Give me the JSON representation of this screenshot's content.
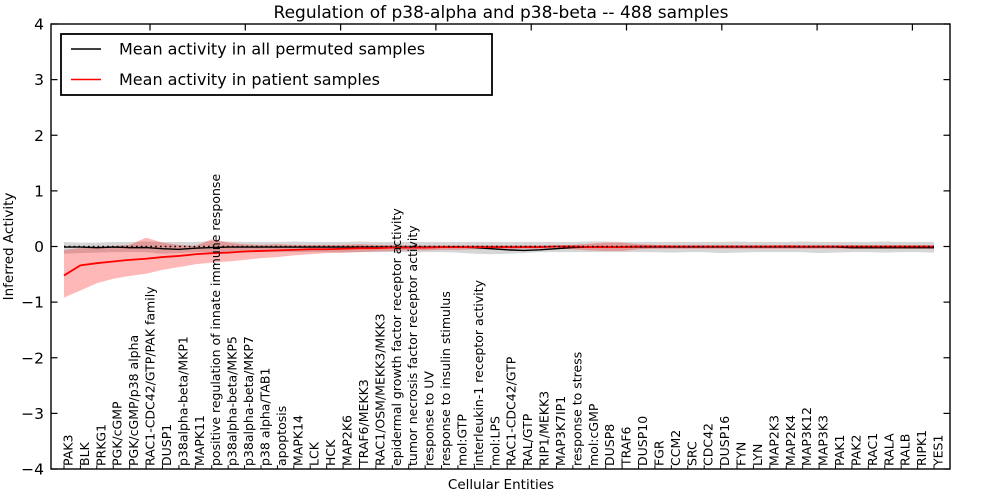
{
  "title": "Regulation of p38-alpha and p38-beta -- 488 samples",
  "chart_data": {
    "type": "line",
    "title": "Regulation of p38-alpha and p38-beta -- 488 samples",
    "xlabel": "Cellular Entities",
    "ylabel": "Inferred Activity",
    "ylim": [
      -4,
      4
    ],
    "yticks": [
      4,
      3,
      2,
      1,
      0,
      -1,
      -2,
      -3,
      -4
    ],
    "grid": false,
    "legend_position": "upper left",
    "zero_line_style": "dotted",
    "colors": {
      "permuted_line": "#000000",
      "permuted_band": "rgba(0,0,0,0.16)",
      "patient_line": "#ff0000",
      "patient_band": "rgba(255,0,0,0.28)"
    },
    "categories": [
      "PAK3",
      "BLK",
      "PRKG1",
      "PGK/cGMP",
      "PGK/cGMP/p38 alpha",
      "RAC1-CDC42/GTP/PAK family",
      "DUSP1",
      "p38alpha-beta/MKP1",
      "MAPK11",
      "positive regulation of innate immune response",
      "p38alpha-beta/MKP5",
      "p38alpha-beta/MKP7",
      "p38 alpha/TAB1",
      "apoptosis",
      "MAPK14",
      "LCK",
      "HCK",
      "MAP2K6",
      "TRAF6/MEKK3",
      "RAC1/OSM/MEKK3/MKK3",
      "epidermal growth factor receptor activity",
      "tumor necrosis factor receptor activity",
      "response to UV",
      "response to insulin stimulus",
      "mol:GTP",
      "interleukin-1 receptor activity",
      "mol:LPS",
      "RAC1-CDC42/GTP",
      "RAL/GTP",
      "RIP1/MEKK3",
      "MAP3K7IP1",
      "response to stress",
      "mol:cGMP",
      "DUSP8",
      "TRAF6",
      "DUSP10",
      "FGR",
      "CCM2",
      "SRC",
      "CDC42",
      "DUSP16",
      "FYN",
      "LYN",
      "MAP2K3",
      "MAP2K4",
      "MAP3K12",
      "MAP3K3",
      "PAK1",
      "PAK2",
      "RAC1",
      "RALA",
      "RALB",
      "RIPK1",
      "YES1"
    ],
    "series": [
      {
        "name": "Mean activity in all permuted samples",
        "type": "line",
        "color": "#000000",
        "values": [
          -0.01,
          -0.01,
          -0.02,
          -0.01,
          -0.02,
          -0.02,
          -0.04,
          -0.05,
          -0.03,
          -0.02,
          -0.01,
          -0.01,
          -0.01,
          -0.01,
          -0.01,
          -0.01,
          -0.01,
          -0.01,
          -0.01,
          -0.01,
          -0.01,
          -0.01,
          -0.01,
          -0.01,
          -0.01,
          -0.02,
          -0.04,
          -0.06,
          -0.07,
          -0.06,
          -0.04,
          -0.02,
          -0.01,
          -0.01,
          -0.01,
          -0.01,
          -0.01,
          -0.01,
          -0.01,
          -0.01,
          -0.01,
          -0.01,
          -0.01,
          -0.01,
          -0.01,
          -0.01,
          -0.01,
          -0.01,
          -0.02,
          -0.02,
          -0.02,
          -0.02,
          -0.02,
          -0.02
        ]
      },
      {
        "name": "Permuted samples confidence band",
        "type": "band",
        "color": "rgba(0,0,0,0.16)",
        "upper": [
          0.08,
          0.07,
          0.07,
          0.08,
          0.08,
          0.09,
          0.08,
          0.08,
          0.08,
          0.1,
          0.09,
          0.08,
          0.08,
          0.08,
          0.09,
          0.08,
          0.08,
          0.08,
          0.09,
          0.08,
          0.08,
          0.08,
          0.08,
          0.08,
          0.08,
          0.08,
          0.08,
          0.08,
          0.08,
          0.08,
          0.08,
          0.08,
          0.09,
          0.09,
          0.08,
          0.08,
          0.08,
          0.08,
          0.08,
          0.08,
          0.08,
          0.09,
          0.08,
          0.08,
          0.08,
          0.09,
          0.08,
          0.08,
          0.08,
          0.08,
          0.09,
          0.08,
          0.08,
          0.08
        ],
        "lower": [
          -0.13,
          -0.12,
          -0.11,
          -0.1,
          -0.1,
          -0.1,
          -0.13,
          -0.12,
          -0.1,
          -0.1,
          -0.1,
          -0.1,
          -0.1,
          -0.1,
          -0.1,
          -0.1,
          -0.1,
          -0.11,
          -0.1,
          -0.1,
          -0.1,
          -0.1,
          -0.1,
          -0.1,
          -0.11,
          -0.13,
          -0.14,
          -0.13,
          -0.12,
          -0.1,
          -0.1,
          -0.1,
          -0.1,
          -0.1,
          -0.1,
          -0.1,
          -0.1,
          -0.11,
          -0.1,
          -0.1,
          -0.12,
          -0.11,
          -0.1,
          -0.1,
          -0.1,
          -0.1,
          -0.12,
          -0.11,
          -0.1,
          -0.1,
          -0.11,
          -0.1,
          -0.1,
          -0.11
        ]
      },
      {
        "name": "Mean activity in patient samples",
        "type": "line",
        "color": "#ff0000",
        "values": [
          -0.52,
          -0.34,
          -0.3,
          -0.27,
          -0.24,
          -0.22,
          -0.19,
          -0.17,
          -0.14,
          -0.12,
          -0.11,
          -0.09,
          -0.08,
          -0.07,
          -0.06,
          -0.05,
          -0.05,
          -0.04,
          -0.03,
          -0.03,
          -0.02,
          -0.02,
          -0.02,
          -0.01,
          -0.01,
          -0.01,
          -0.01,
          -0.01,
          -0.01,
          -0.01,
          0,
          0,
          -0.01,
          -0.01,
          -0.01,
          0,
          0,
          0,
          0,
          0,
          0,
          0,
          0,
          0,
          0,
          0,
          0,
          0,
          0,
          0,
          0,
          0,
          0,
          0
        ]
      },
      {
        "name": "Patient samples confidence band",
        "type": "band",
        "color": "rgba(255,0,0,0.28)",
        "upper": [
          -0.06,
          -0.03,
          -0.01,
          0.01,
          0.03,
          0.16,
          0.07,
          0.03,
          0.01,
          0.13,
          0.07,
          0.04,
          0.03,
          0.04,
          0.03,
          0.03,
          0.03,
          0.03,
          0.04,
          0.03,
          0.03,
          0.02,
          0.02,
          0.02,
          0.02,
          0.02,
          0.02,
          0.02,
          0.02,
          0.02,
          0.02,
          0.03,
          0.05,
          0.07,
          0.07,
          0.04,
          0.03,
          0.02,
          0.02,
          0.02,
          0.02,
          0.02,
          0.02,
          0.02,
          0.03,
          0.02,
          0.02,
          0.02,
          0.02,
          0.02,
          0.02,
          0.02,
          0.02,
          0.02
        ],
        "lower": [
          -0.92,
          -0.79,
          -0.66,
          -0.58,
          -0.53,
          -0.49,
          -0.42,
          -0.37,
          -0.32,
          -0.29,
          -0.27,
          -0.24,
          -0.21,
          -0.19,
          -0.16,
          -0.14,
          -0.12,
          -0.11,
          -0.1,
          -0.09,
          -0.08,
          -0.07,
          -0.07,
          -0.06,
          -0.06,
          -0.05,
          -0.05,
          -0.05,
          -0.04,
          -0.04,
          -0.04,
          -0.05,
          -0.07,
          -0.08,
          -0.08,
          -0.05,
          -0.04,
          -0.04,
          -0.04,
          -0.04,
          -0.04,
          -0.04,
          -0.04,
          -0.04,
          -0.04,
          -0.04,
          -0.04,
          -0.04,
          -0.04,
          -0.04,
          -0.04,
          -0.04,
          -0.04,
          -0.04
        ]
      }
    ],
    "legend": {
      "entries": [
        {
          "label": "Mean activity in all permuted samples",
          "color": "#000000"
        },
        {
          "label": "Mean activity in patient samples",
          "color": "#ff0000"
        }
      ]
    }
  }
}
